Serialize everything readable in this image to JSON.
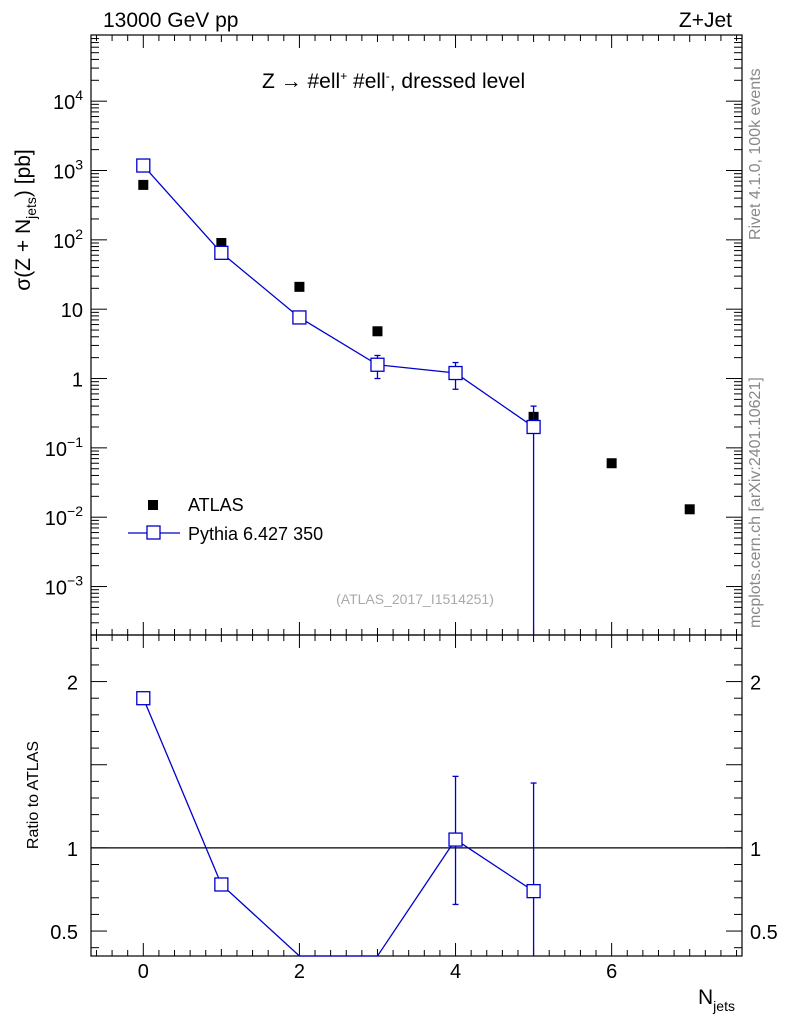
{
  "header": {
    "left": "13000 GeV pp",
    "right": "Z+Jet"
  },
  "side_labels": {
    "rivet": "Rivet 4.1.0,  100k events",
    "mcplots": "mcplots.cern.ch [arXiv:2401.10621]"
  },
  "plot_title": {
    "main": "Z → #ell",
    "sup1": "+",
    "mid": " #ell",
    "sup2": "-",
    "end": ", dressed level"
  },
  "watermark": "(ATLAS_2017_I1514251)",
  "y_axis_label": {
    "pre": "σ(Z + N",
    "sub": "jets",
    "post": ") [pb]"
  },
  "ratio_axis_label": "Ratio to ATLAS",
  "x_axis_label": {
    "main": "N",
    "sub": "jets"
  },
  "legend": {
    "data": "ATLAS",
    "mc": "Pythia 6.427 350"
  },
  "colors": {
    "data": "#000000",
    "mc": "#0000cc"
  },
  "chart_data": [
    {
      "type": "scatter",
      "title": "",
      "xlabel": "N_jets",
      "ylabel": "σ(Z + N_jets) [pb]",
      "yscale": "log",
      "xlim": [
        -0.67,
        7.67
      ],
      "ylim": [
        0.0002,
        90000
      ],
      "x_ticks": [
        0,
        2,
        4,
        6
      ],
      "y_ticks": [
        {
          "value": 0.001,
          "mant": "10",
          "exp": "−3"
        },
        {
          "value": 0.01,
          "mant": "10",
          "exp": "−2"
        },
        {
          "value": 0.1,
          "mant": "10",
          "exp": "−1"
        },
        {
          "value": 1,
          "mant": "1",
          "exp": ""
        },
        {
          "value": 10,
          "mant": "10",
          "exp": ""
        },
        {
          "value": 100,
          "mant": "10",
          "exp": "2"
        },
        {
          "value": 1000,
          "mant": "10",
          "exp": "3"
        },
        {
          "value": 10000,
          "mant": "10",
          "exp": "4"
        }
      ],
      "legend_position": "bottom-left",
      "series": [
        {
          "name": "ATLAS",
          "marker": "filled-square",
          "x": [
            0,
            1,
            2,
            3,
            4,
            5,
            6,
            7
          ],
          "y": [
            620,
            90,
            21,
            4.8,
            1.15,
            0.28,
            0.06,
            0.013
          ]
        },
        {
          "name": "Pythia 6.427 350",
          "marker": "open-square-line",
          "x": [
            0,
            1,
            2,
            3,
            4,
            5
          ],
          "y": [
            1180,
            65,
            7.6,
            1.58,
            1.2,
            0.2
          ],
          "y_err_low": [
            1120,
            60,
            7.1,
            1.0,
            0.7,
            1e-05
          ],
          "y_err_high": [
            1240,
            70,
            8.1,
            2.15,
            1.7,
            0.4
          ]
        }
      ]
    },
    {
      "type": "line",
      "title": "",
      "xlabel": "N_jets",
      "ylabel": "Ratio to ATLAS",
      "xlim": [
        -0.67,
        7.67
      ],
      "ylim": [
        0.35,
        2.28
      ],
      "y_ticks": [
        0.5,
        1,
        2
      ],
      "reference_line": 1,
      "series": [
        {
          "name": "Pythia 6.427 350",
          "x": [
            0,
            1,
            2,
            3,
            4,
            5
          ],
          "y": [
            1.9,
            0.78,
            0.34,
            0.34,
            1.05,
            0.74
          ],
          "y_err_low": [
            1.9,
            0.75,
            0.34,
            0.34,
            0.66,
            0.0
          ],
          "y_err_high": [
            1.9,
            0.81,
            0.34,
            0.34,
            1.43,
            1.39
          ]
        }
      ]
    }
  ]
}
